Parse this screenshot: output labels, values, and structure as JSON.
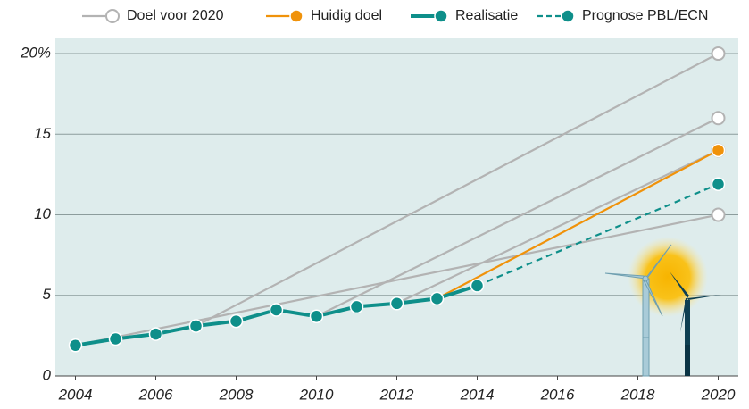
{
  "chart_data": {
    "type": "line",
    "xlim": [
      2003.5,
      2020.5
    ],
    "xticks": [
      2004,
      2006,
      2008,
      2010,
      2012,
      2014,
      2016,
      2018,
      2020
    ],
    "ylim": [
      0,
      21
    ],
    "yticks": [
      0,
      5,
      10,
      15,
      {
        "value": 20,
        "label": "20%"
      }
    ],
    "grid": true,
    "legend": "top",
    "series": [
      {
        "name": "Doel voor 2020",
        "color": "#b3b3b3",
        "marker": "end",
        "hollow": true,
        "lines": [
          {
            "x": [
              2004,
              2020
            ],
            "values": [
              1.9,
              10
            ]
          },
          {
            "x": [
              2007,
              2020
            ],
            "values": [
              3.1,
              20
            ]
          },
          {
            "x": [
              2010,
              2020
            ],
            "values": [
              3.7,
              16
            ]
          },
          {
            "x": [
              2012,
              2020
            ],
            "values": [
              4.5,
              14
            ]
          }
        ]
      },
      {
        "name": "Huidig doel",
        "color": "#f0920a",
        "marker": "end",
        "x": [
          2013,
          2020
        ],
        "values": [
          4.8,
          14
        ]
      },
      {
        "name": "Realisatie",
        "color": "#0e8f8a",
        "marker": "all",
        "width": 4,
        "x": [
          2004,
          2005,
          2006,
          2007,
          2008,
          2009,
          2010,
          2011,
          2012,
          2013,
          2014
        ],
        "values": [
          1.9,
          2.3,
          2.6,
          3.1,
          3.4,
          4.1,
          3.7,
          4.3,
          4.5,
          4.8,
          5.6
        ]
      },
      {
        "name": "Prognose PBL/ECN",
        "color": "#0e8f8a",
        "marker": "end",
        "dashed": true,
        "x": [
          2014,
          2020
        ],
        "values": [
          5.6,
          11.9
        ]
      }
    ]
  }
}
